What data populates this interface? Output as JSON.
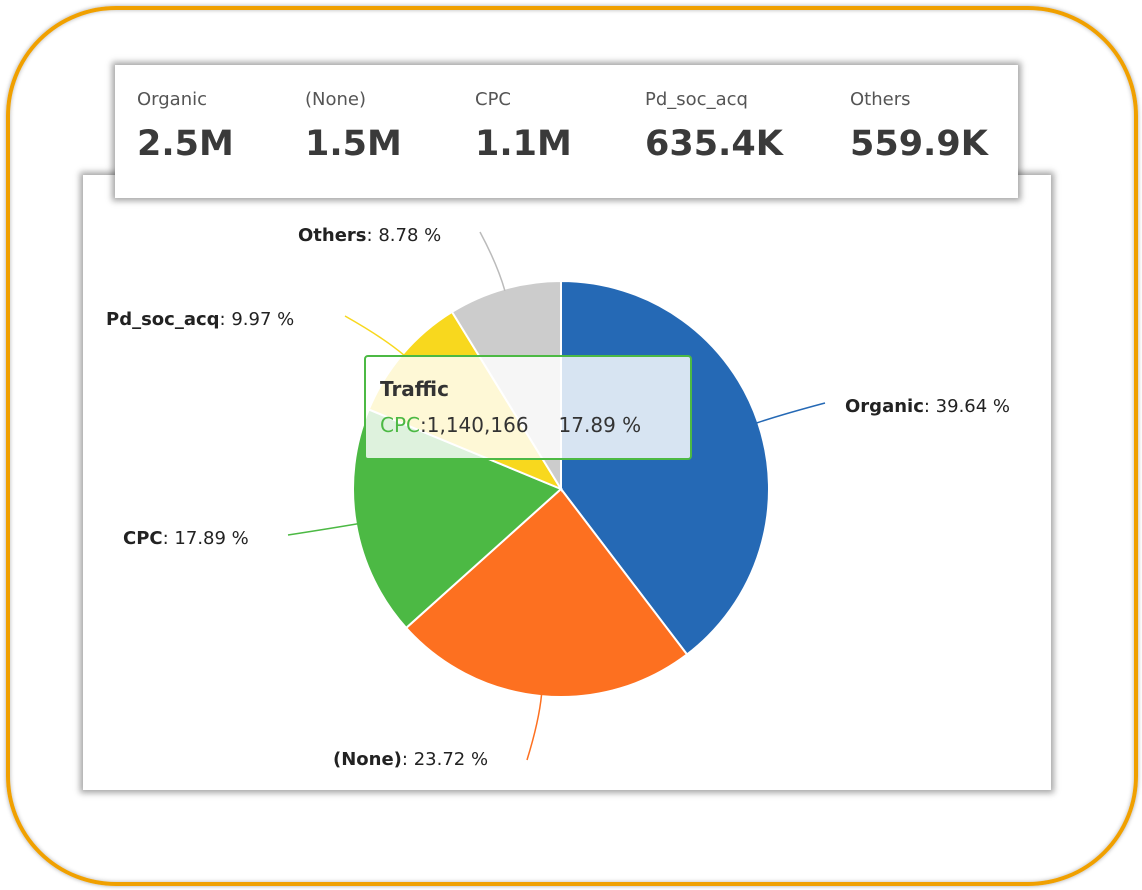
{
  "kpis": [
    {
      "label": "Organic",
      "value": "2.5M"
    },
    {
      "label": "(None)",
      "value": "1.5M"
    },
    {
      "label": "CPC",
      "value": "1.1M"
    },
    {
      "label": "Pd_soc_acq",
      "value": "635.4K"
    },
    {
      "label": "Others",
      "value": "559.9K"
    }
  ],
  "chart_data": {
    "type": "pie",
    "categories": [
      "Organic",
      "(None)",
      "CPC",
      "Pd_soc_acq",
      "Others"
    ],
    "values": [
      39.64,
      23.72,
      17.89,
      9.97,
      8.78
    ],
    "value_labels": [
      "39.64 %",
      "23.72 %",
      "17.89 %",
      "9.97 %",
      "8.78 %"
    ],
    "colors": [
      "#2569b5",
      "#fd7020",
      "#4cb944",
      "#f8d81e",
      "#cccccc"
    ]
  },
  "tooltip": {
    "title": "Traffic",
    "series": "CPC",
    "value": "1,140,166",
    "percent": "17.89 %"
  }
}
